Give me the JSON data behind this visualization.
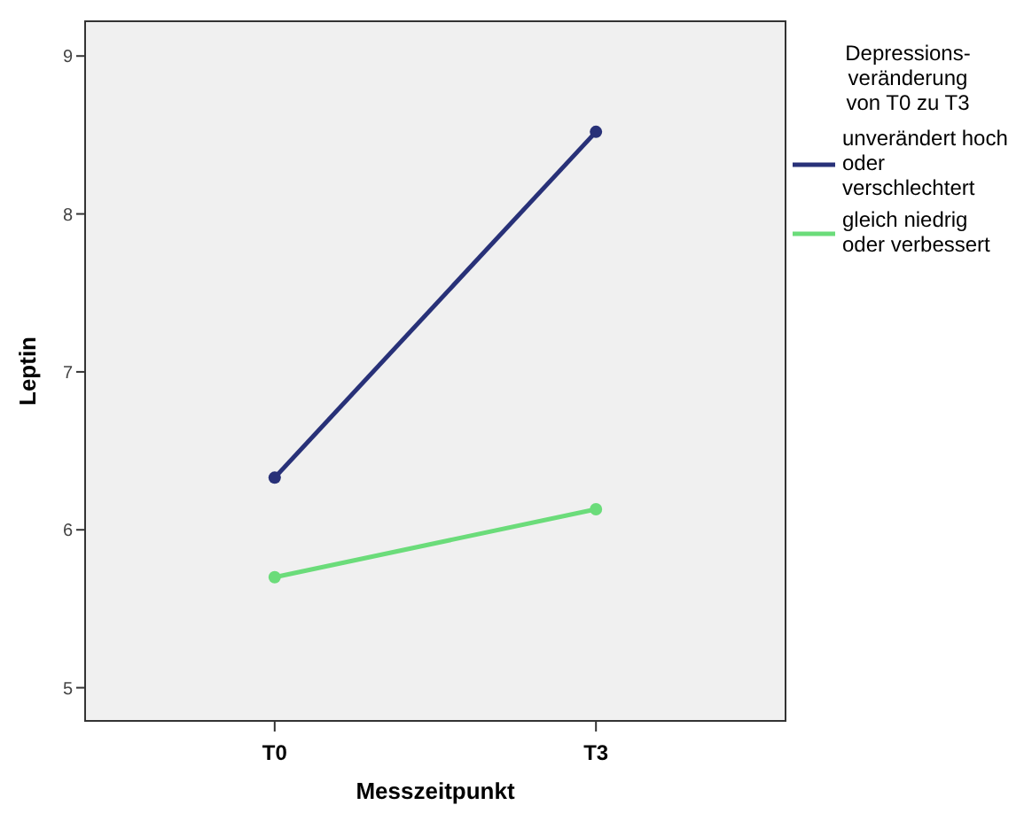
{
  "chart_data": {
    "type": "line",
    "xlabel": "Messzeitpunkt",
    "ylabel": "Leptin",
    "legend_title": "Depressions-\nveränderung\nvon T0 zu T3",
    "categories": [
      "T0",
      "T3"
    ],
    "series": [
      {
        "name": "unverändert hoch oder verschlechtert",
        "color": "#283178",
        "values": [
          6.33,
          8.52
        ]
      },
      {
        "name": "gleich niedrig oder verbessert",
        "color": "#6bdc7a",
        "values": [
          5.7,
          6.13
        ]
      }
    ],
    "ylim": [
      4.79,
      9.22
    ],
    "yticks": [
      5,
      6,
      7,
      8,
      9
    ],
    "grid": false,
    "legend": "right",
    "marker": "circle"
  }
}
